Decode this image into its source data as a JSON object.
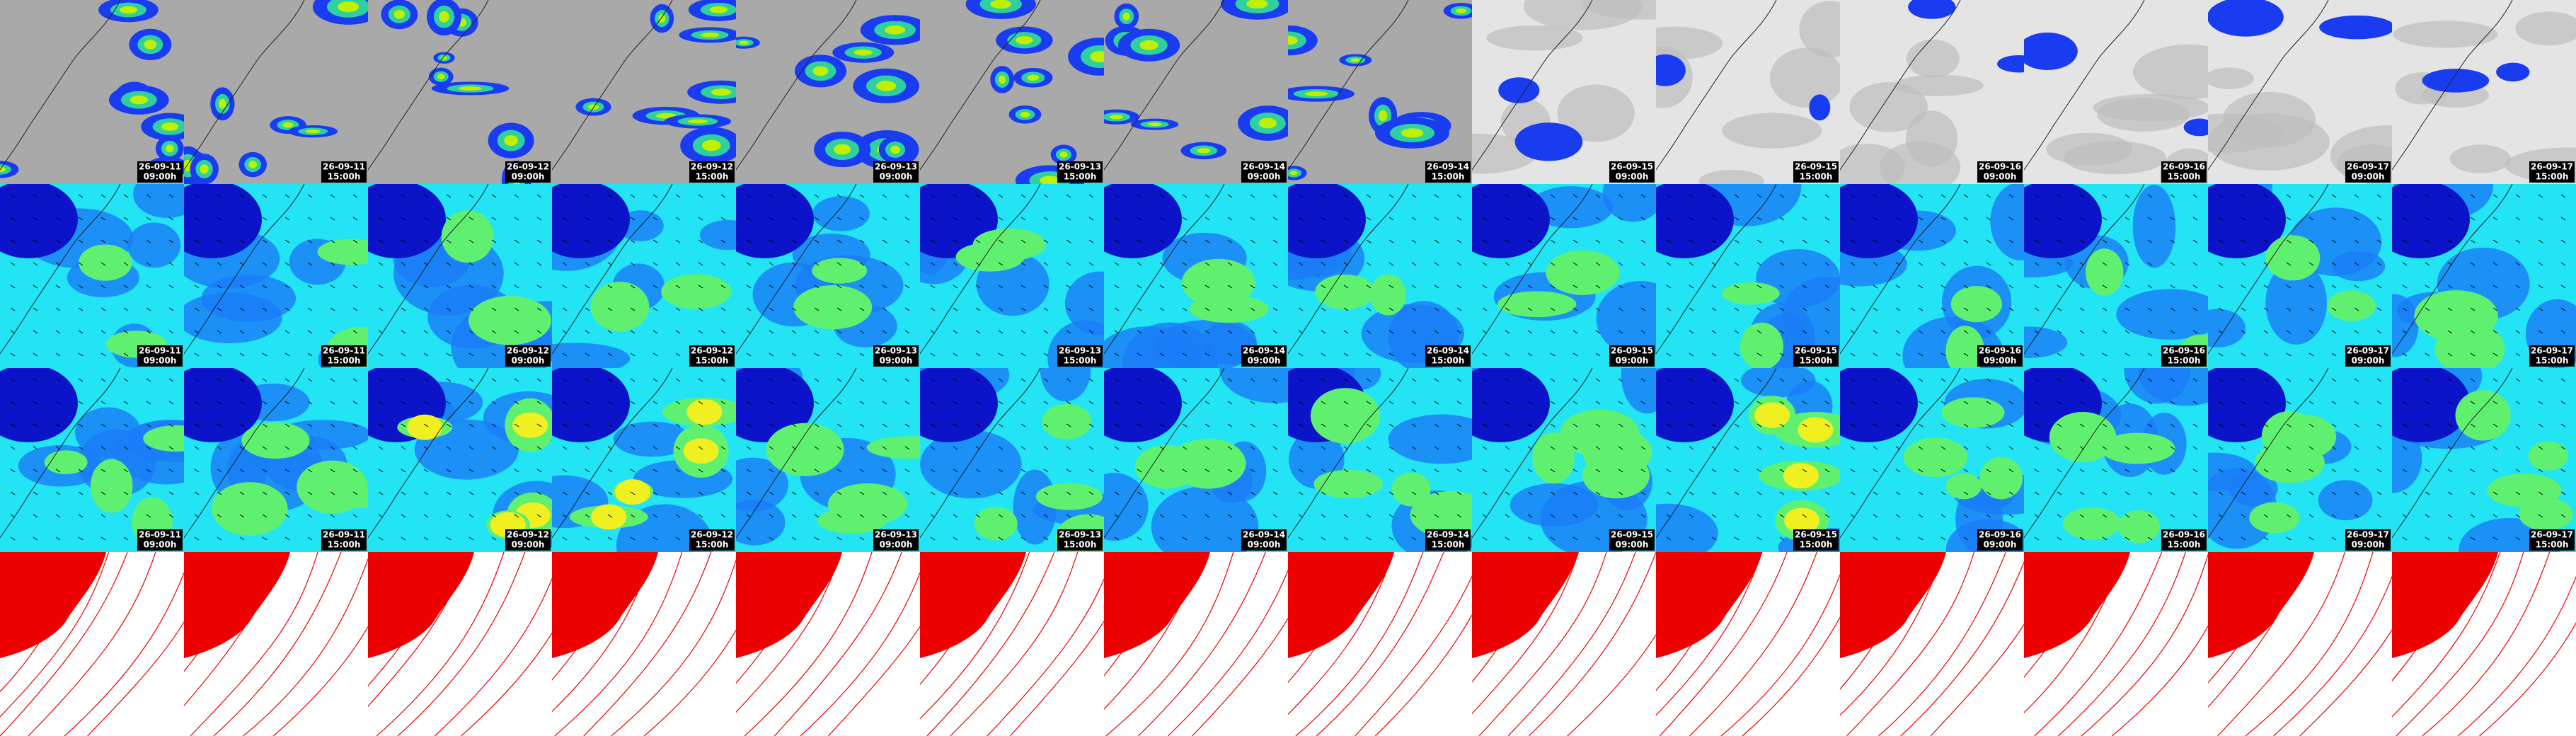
{
  "frames": [
    {
      "date": "26-09-11",
      "time": "09:00h"
    },
    {
      "date": "26-09-11",
      "time": "15:00h"
    },
    {
      "date": "26-09-12",
      "time": "09:00h"
    },
    {
      "date": "26-09-12",
      "time": "15:00h"
    },
    {
      "date": "26-09-13",
      "time": "09:00h"
    },
    {
      "date": "26-09-13",
      "time": "15:00h"
    },
    {
      "date": "26-09-14",
      "time": "09:00h"
    },
    {
      "date": "26-09-14",
      "time": "15:00h"
    },
    {
      "date": "26-09-15",
      "time": "09:00h"
    },
    {
      "date": "26-09-15",
      "time": "15:00h"
    },
    {
      "date": "26-09-16",
      "time": "09:00h"
    },
    {
      "date": "26-09-16",
      "time": "15:00h"
    },
    {
      "date": "26-09-17",
      "time": "09:00h"
    },
    {
      "date": "26-09-17",
      "time": "15:00h"
    }
  ]
}
